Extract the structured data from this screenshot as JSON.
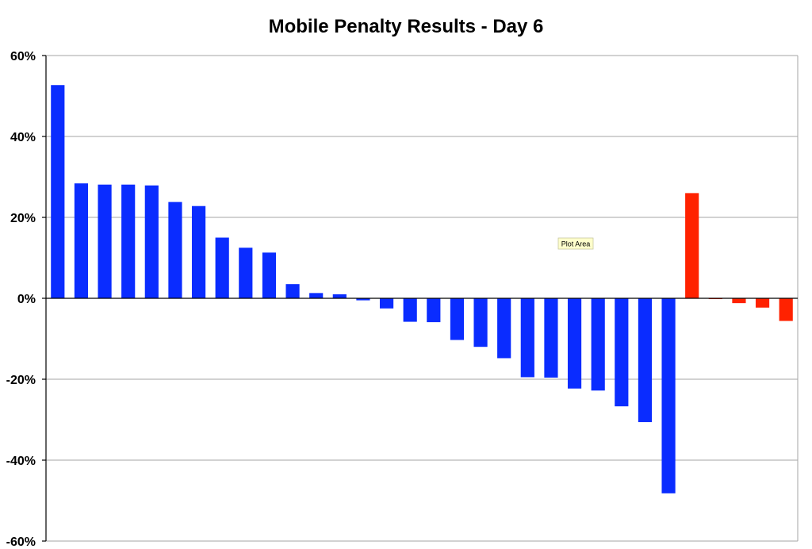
{
  "chart_data": {
    "type": "bar",
    "title": "Mobile Penalty Results - Day 6",
    "xlabel": "",
    "ylabel": "",
    "ylim": [
      -60,
      60
    ],
    "y_ticks": [
      60,
      40,
      20,
      0,
      -20,
      -40,
      -60
    ],
    "y_tick_labels": [
      "60%",
      "40%",
      "20%",
      "0%",
      "-20%",
      "-40%",
      "-60%"
    ],
    "grid": true,
    "legend": "none",
    "series": [
      {
        "color": "#0a2cff",
        "values": [
          52.7,
          28.4,
          28.1,
          28.1,
          27.9,
          23.8,
          22.8,
          15.0,
          12.5,
          11.3,
          3.5,
          1.3,
          1.0,
          -0.5,
          -2.5,
          -5.8,
          -5.9,
          -10.3,
          -12.0,
          -14.8,
          -19.5,
          -19.6,
          -22.3,
          -22.8,
          -26.7,
          -30.6,
          -48.2
        ]
      },
      {
        "color": "#ff2200",
        "values": [
          26.0,
          -0.2,
          -1.2,
          -2.3,
          -5.6
        ]
      }
    ]
  },
  "tooltip": {
    "text": "Plot Area"
  }
}
